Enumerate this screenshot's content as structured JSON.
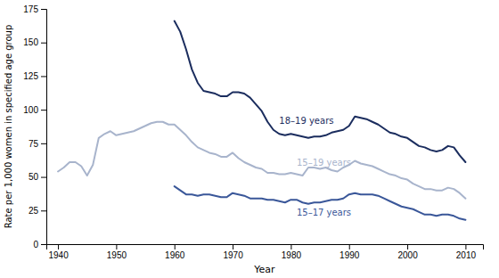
{
  "chart_data": {
    "type": "line",
    "xlabel": "Year",
    "ylabel": "Rate per 1,000 women in specified age group",
    "xlim": [
      1938,
      2013
    ],
    "xticks": [
      1940,
      1950,
      1960,
      1970,
      1980,
      1990,
      2000,
      2010
    ],
    "ylim": [
      0,
      175
    ],
    "yticks": [
      0,
      25,
      50,
      75,
      100,
      125,
      150,
      175
    ],
    "grid": false,
    "series": [
      {
        "color": "#a8b4cc",
        "x": [
          1940,
          1941,
          1942,
          1943,
          1944,
          1945,
          1946,
          1947,
          1948,
          1949,
          1950,
          1951,
          1952,
          1953,
          1954,
          1955,
          1956,
          1957,
          1958,
          1959,
          1960,
          1961,
          1962,
          1963,
          1964,
          1965,
          1966,
          1967,
          1968,
          1969,
          1970,
          1971,
          1972,
          1973,
          1974,
          1975,
          1976,
          1977,
          1978,
          1979,
          1980,
          1981,
          1982,
          1983,
          1984,
          1985,
          1986,
          1987,
          1988,
          1989,
          1990,
          1991,
          1992,
          1993,
          1994,
          1995,
          1996,
          1997,
          1998,
          1999,
          2000,
          2001,
          2002,
          2003,
          2004,
          2005,
          2006,
          2007,
          2008,
          2009,
          2010
        ],
        "values": [
          54,
          57,
          61,
          61,
          58,
          51,
          59,
          79,
          82,
          84,
          81,
          82,
          83,
          84,
          86,
          88,
          90,
          91,
          91,
          89,
          89,
          85,
          81,
          76,
          72,
          70,
          68,
          67,
          65,
          65,
          68,
          64,
          61,
          59,
          57,
          56,
          53,
          53,
          52,
          52,
          53,
          52,
          51,
          57,
          57,
          56,
          57,
          55,
          54,
          57,
          59,
          62,
          60,
          59,
          58,
          56,
          54,
          52,
          51,
          49,
          48,
          45,
          43,
          41,
          41,
          40,
          40,
          42,
          41,
          38,
          34
        ]
      },
      {
        "color": "#1b2d5e",
        "x": [
          1960,
          1961,
          1962,
          1963,
          1964,
          1965,
          1966,
          1967,
          1968,
          1969,
          1970,
          1971,
          1972,
          1973,
          1974,
          1975,
          1976,
          1977,
          1978,
          1979,
          1980,
          1981,
          1982,
          1983,
          1984,
          1985,
          1986,
          1987,
          1988,
          1989,
          1990,
          1991,
          1992,
          1993,
          1994,
          1995,
          1996,
          1997,
          1998,
          1999,
          2000,
          2001,
          2002,
          2003,
          2004,
          2005,
          2006,
          2007,
          2008,
          2009,
          2010
        ],
        "values": [
          166,
          158,
          145,
          130,
          120,
          114,
          113,
          112,
          110,
          110,
          113,
          113,
          112,
          109,
          104,
          99,
          91,
          85,
          82,
          81,
          82,
          81,
          80,
          79,
          80,
          80,
          81,
          83,
          84,
          85,
          88,
          95,
          94,
          93,
          91,
          89,
          86,
          83,
          82,
          80,
          79,
          76,
          73,
          72,
          70,
          69,
          70,
          73,
          72,
          66,
          61
        ]
      },
      {
        "color": "#3a5799",
        "x": [
          1960,
          1961,
          1962,
          1963,
          1964,
          1965,
          1966,
          1967,
          1968,
          1969,
          1970,
          1971,
          1972,
          1973,
          1974,
          1975,
          1976,
          1977,
          1978,
          1979,
          1980,
          1981,
          1982,
          1983,
          1984,
          1985,
          1986,
          1987,
          1988,
          1989,
          1990,
          1991,
          1992,
          1993,
          1994,
          1995,
          1996,
          1997,
          1998,
          1999,
          2000,
          2001,
          2002,
          2003,
          2004,
          2005,
          2006,
          2007,
          2008,
          2009,
          2010
        ],
        "values": [
          43,
          40,
          37,
          37,
          36,
          37,
          37,
          36,
          35,
          35,
          38,
          37,
          36,
          34,
          34,
          34,
          33,
          33,
          32,
          31,
          33,
          33,
          31,
          30,
          31,
          31,
          32,
          33,
          33,
          34,
          37,
          38,
          37,
          37,
          37,
          36,
          34,
          32,
          30,
          28,
          27,
          26,
          24,
          22,
          22,
          21,
          22,
          22,
          21,
          19,
          18
        ]
      }
    ],
    "annotations": [
      {
        "text": "18–19 years",
        "x": 1978,
        "y": 88,
        "color": "#1b2d5e"
      },
      {
        "text": "15–19 years",
        "x": 1981,
        "y": 57,
        "color": "#a8b4cc"
      },
      {
        "text": "15–17 years",
        "x": 1981,
        "y": 27,
        "color": "#3a5799"
      }
    ]
  }
}
